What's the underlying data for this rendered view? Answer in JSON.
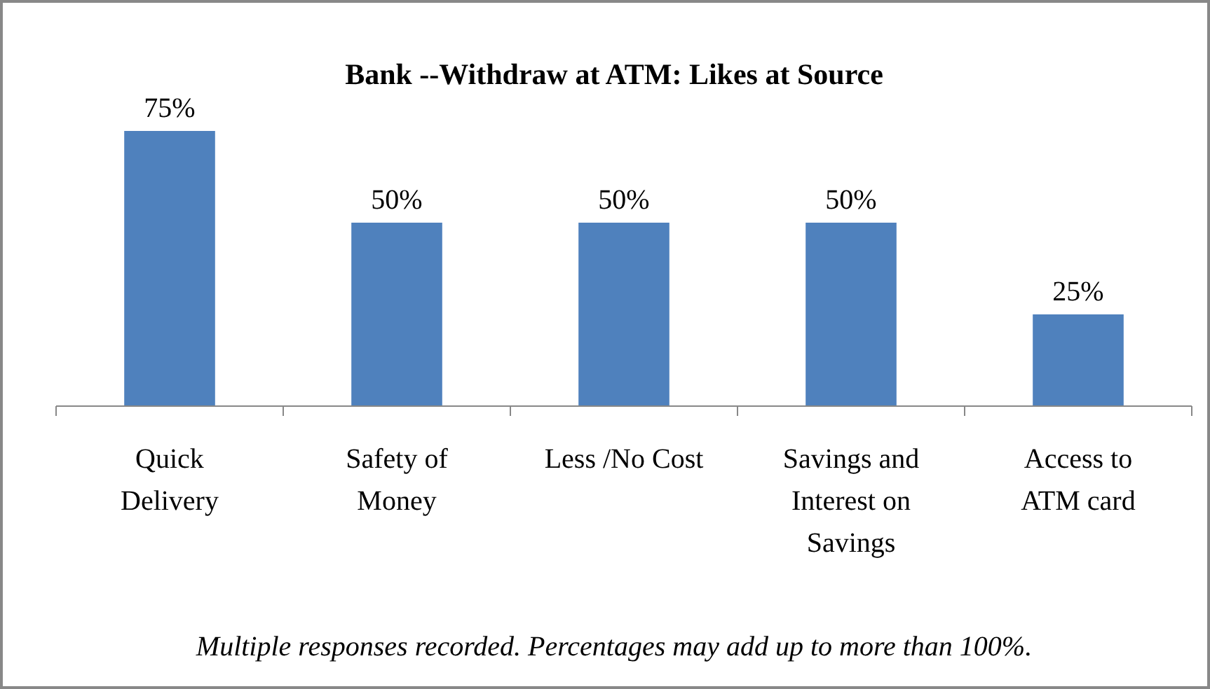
{
  "chart_data": {
    "type": "bar",
    "title": "Bank --Withdraw at ATM: Likes at Source",
    "categories": [
      "Quick\nDelivery",
      "Safety of\nMoney",
      "Less /No Cost",
      "Savings and\nInterest on\nSavings",
      "Access to\nATM card"
    ],
    "values": [
      75,
      50,
      50,
      50,
      25
    ],
    "color": "#4f81bd",
    "value_labels": [
      "75%",
      "50%",
      "50%",
      "50%",
      "25%"
    ],
    "annotations": [
      "Multiple responses recorded. Percentages may add up to more than 100%."
    ]
  }
}
